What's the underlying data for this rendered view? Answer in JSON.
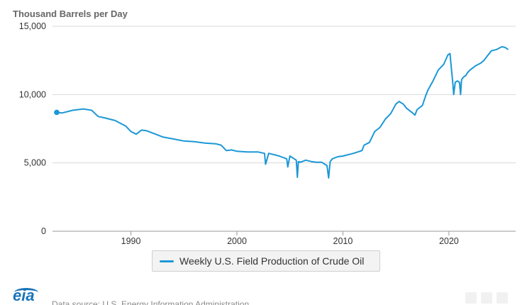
{
  "chart_data": {
    "type": "line",
    "unit_label": "Thousand Barrels per Day",
    "y_ticks": [
      "0",
      "5,000",
      "10,000",
      "15,000"
    ],
    "y_tick_values": [
      0,
      5000,
      10000,
      15000
    ],
    "x_ticks": [
      "1990",
      "2000",
      "2010",
      "2020"
    ],
    "x_tick_values": [
      1990,
      2000,
      2010,
      2020
    ],
    "xlim": [
      1982.6,
      2026.3
    ],
    "ylim": [
      0,
      15000
    ],
    "grid": true,
    "legend_position": "bottom-center",
    "series": [
      {
        "name": "Weekly U.S. Field Production of Crude Oil",
        "color": "#1c98d6",
        "x": [
          1983.0,
          1983.5,
          1984.5,
          1985.5,
          1986.3,
          1986.9,
          1987.5,
          1988.5,
          1989.0,
          1989.5,
          1990.0,
          1990.5,
          1991.0,
          1991.5,
          1992.0,
          1993.0,
          1994.0,
          1995.0,
          1996.0,
          1997.0,
          1998.0,
          1998.5,
          1999.0,
          1999.5,
          2000.0,
          2001.0,
          2002.0,
          2002.6,
          2002.7,
          2003.0,
          2004.0,
          2004.7,
          2004.8,
          2005.0,
          2005.6,
          2005.7,
          2005.8,
          2006.0,
          2006.5,
          2007.0,
          2007.5,
          2008.0,
          2008.5,
          2008.65,
          2008.8,
          2009.0,
          2009.5,
          2010.0,
          2011.0,
          2011.8,
          2012.0,
          2012.5,
          2013.0,
          2013.5,
          2014.0,
          2014.5,
          2015.0,
          2015.3,
          2015.7,
          2016.0,
          2016.5,
          2016.8,
          2017.0,
          2017.5,
          2017.8,
          2018.0,
          2018.5,
          2019.0,
          2019.5,
          2019.9,
          2020.1,
          2020.2,
          2020.35,
          2020.45,
          2020.6,
          2020.8,
          2021.0,
          2021.1,
          2021.2,
          2021.4,
          2021.6,
          2021.75,
          2022.0,
          2022.5,
          2023.0,
          2023.3,
          2023.7,
          2024.0,
          2024.5,
          2025.0,
          2025.3,
          2025.6
        ],
        "values": [
          8700,
          8650,
          8850,
          8950,
          8850,
          8400,
          8300,
          8100,
          7900,
          7700,
          7300,
          7100,
          7400,
          7350,
          7200,
          6900,
          6750,
          6600,
          6550,
          6450,
          6400,
          6300,
          5900,
          5950,
          5850,
          5800,
          5800,
          5700,
          4900,
          5700,
          5500,
          5300,
          4700,
          5500,
          5200,
          3950,
          5100,
          5050,
          5200,
          5100,
          5050,
          5050,
          4800,
          3900,
          5100,
          5300,
          5450,
          5500,
          5700,
          5900,
          6300,
          6500,
          7300,
          7600,
          8200,
          8600,
          9300,
          9500,
          9300,
          9000,
          8700,
          8500,
          8900,
          9200,
          9900,
          10300,
          11000,
          11800,
          12200,
          12900,
          13000,
          12200,
          11000,
          10000,
          10900,
          11000,
          10900,
          10000,
          11100,
          11300,
          11400,
          11600,
          11800,
          12100,
          12300,
          12500,
          12900,
          13200,
          13300,
          13500,
          13450,
          13300
        ]
      }
    ]
  },
  "footer": {
    "logo_text": "eia",
    "source_text": "Data source: U.S. Energy Information Administration"
  }
}
